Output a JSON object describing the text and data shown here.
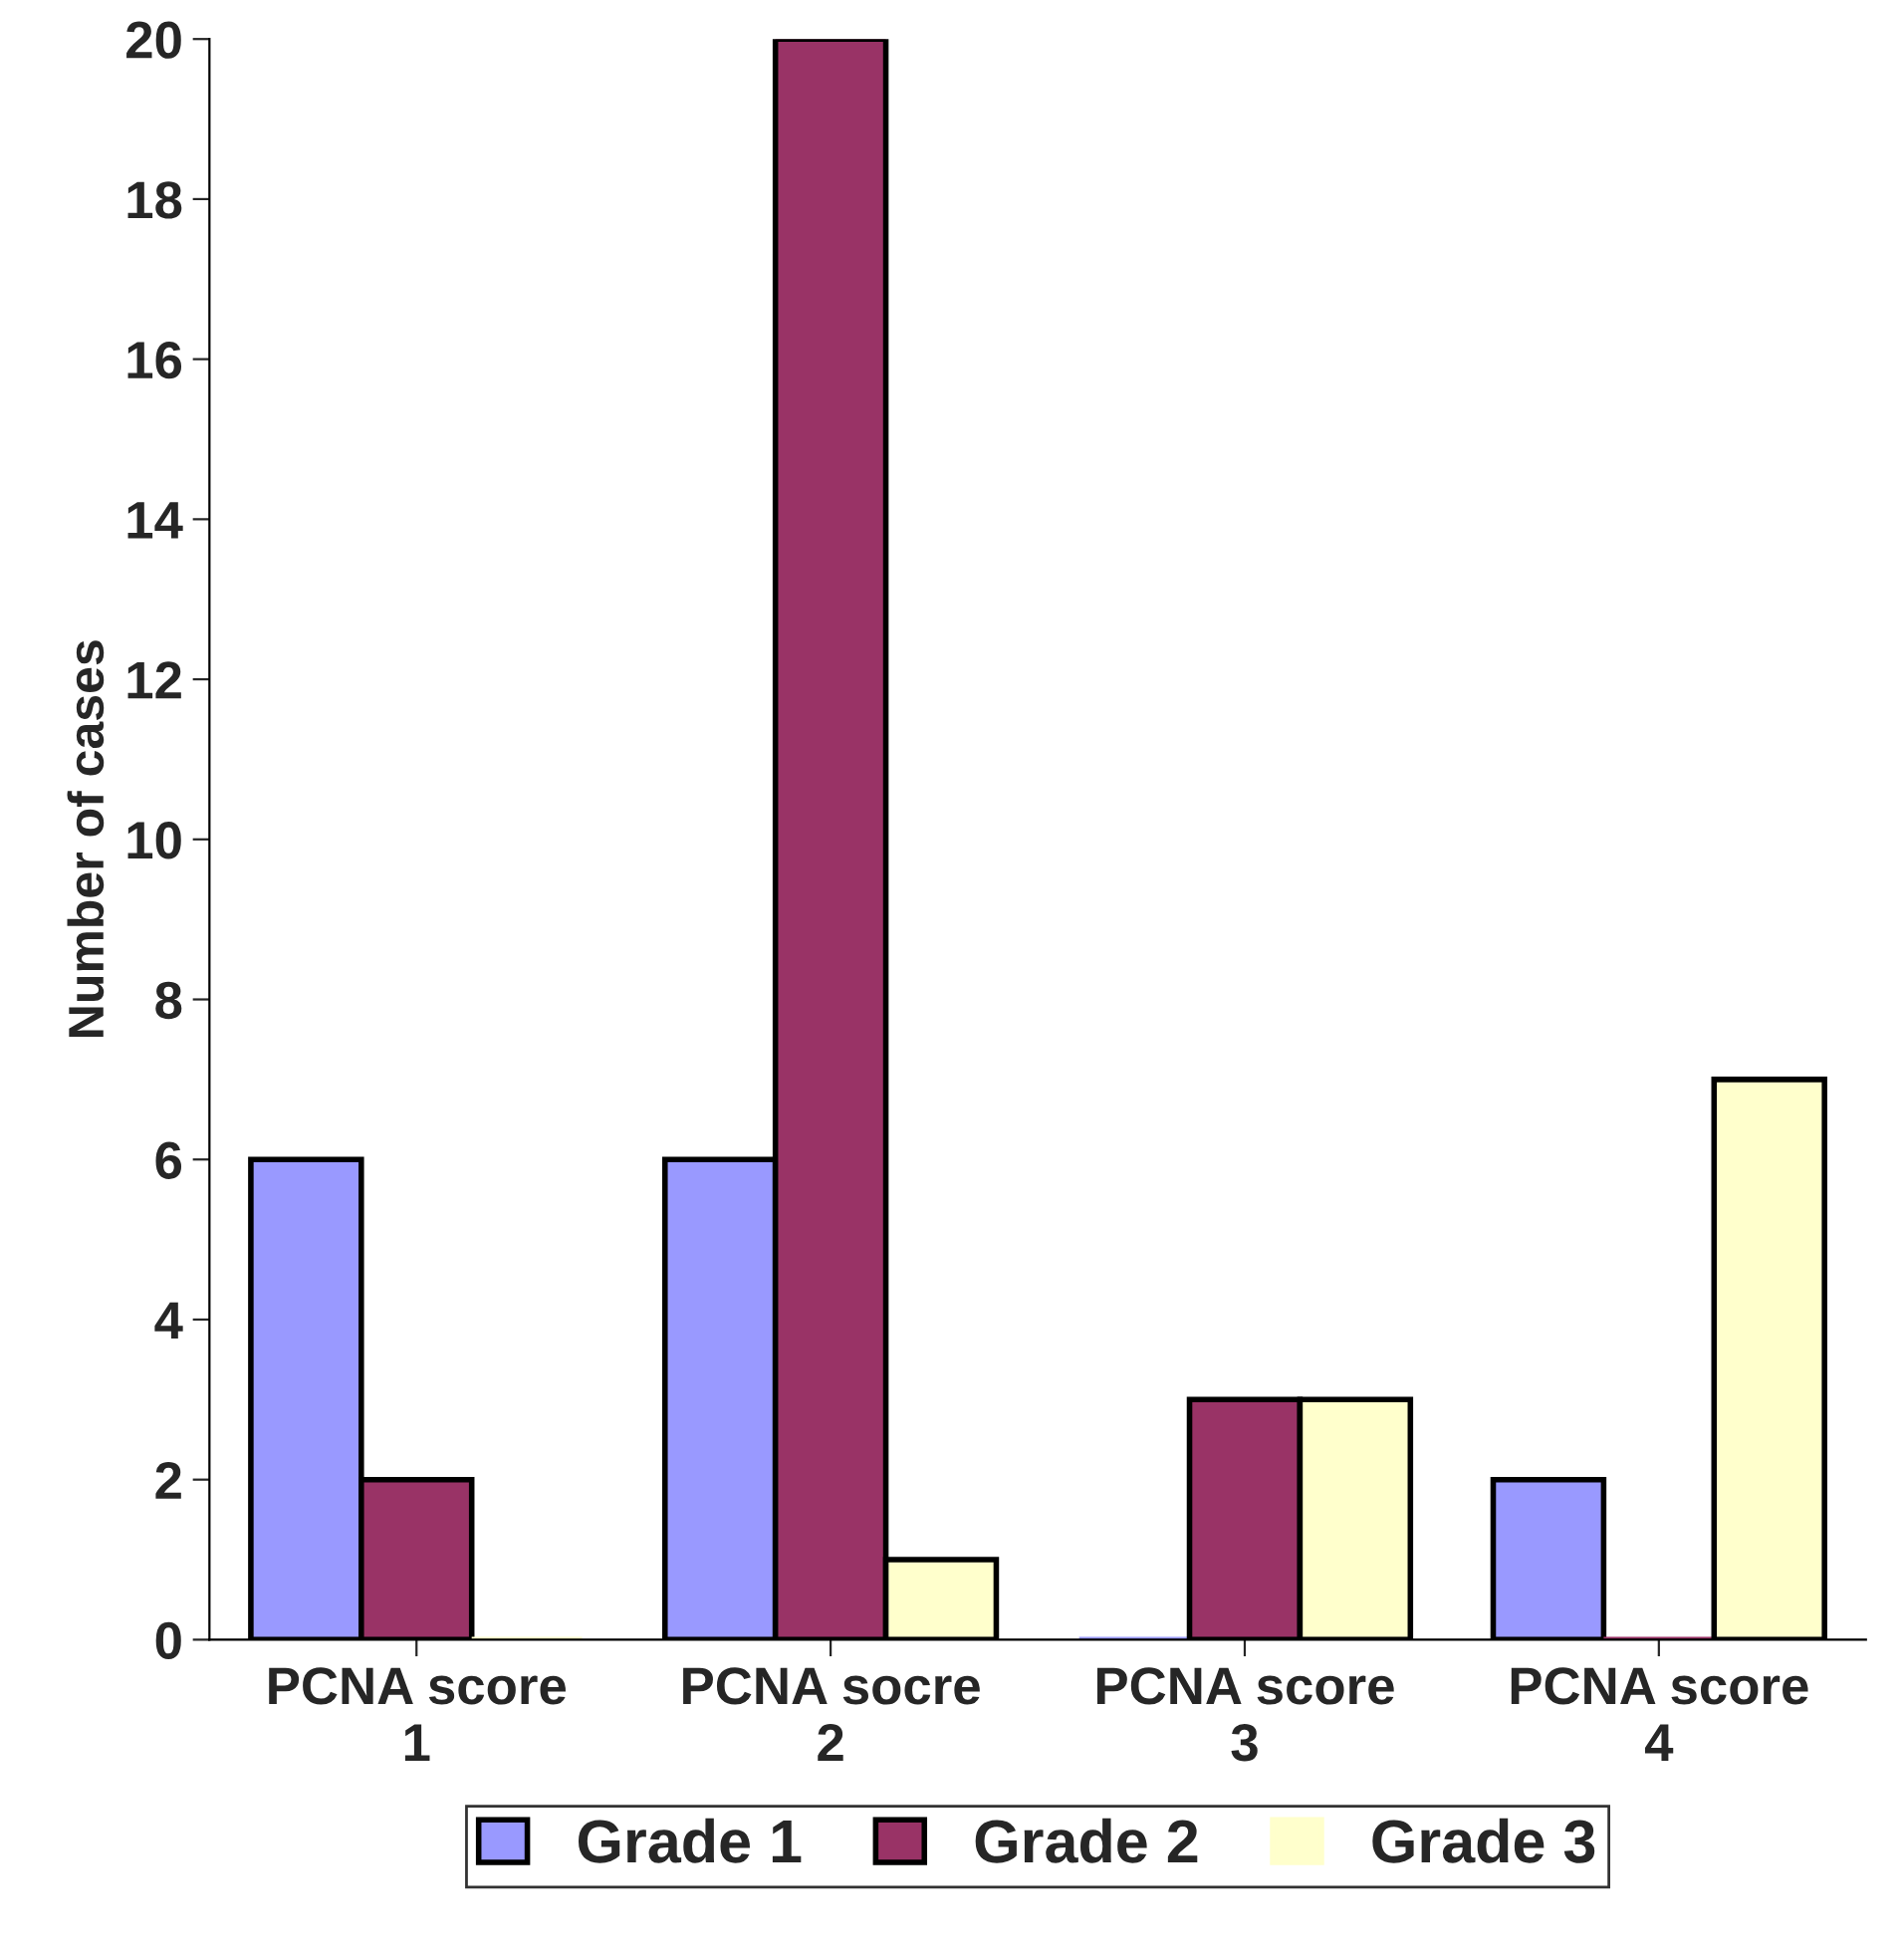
{
  "chart_data": {
    "type": "bar",
    "ylabel": "Number of cases",
    "categories": [
      "PCNA score\n1",
      "PCNA socre\n2",
      "PCNA score\n3",
      "PCNA score\n4"
    ],
    "series": [
      {
        "name": "Grade 1",
        "color": "#9999ff",
        "values": [
          6,
          6,
          0,
          2
        ]
      },
      {
        "name": "Grade 2",
        "color": "#993366",
        "values": [
          2,
          20,
          3,
          0
        ]
      },
      {
        "name": "Grade 3",
        "color": "#ffffcc",
        "values": [
          0,
          1,
          3,
          7
        ]
      }
    ],
    "ylim": [
      0,
      20
    ],
    "yticks": [
      0,
      2,
      4,
      6,
      8,
      10,
      12,
      14,
      16,
      18,
      20
    ],
    "grid": false,
    "legend": "bottom"
  }
}
